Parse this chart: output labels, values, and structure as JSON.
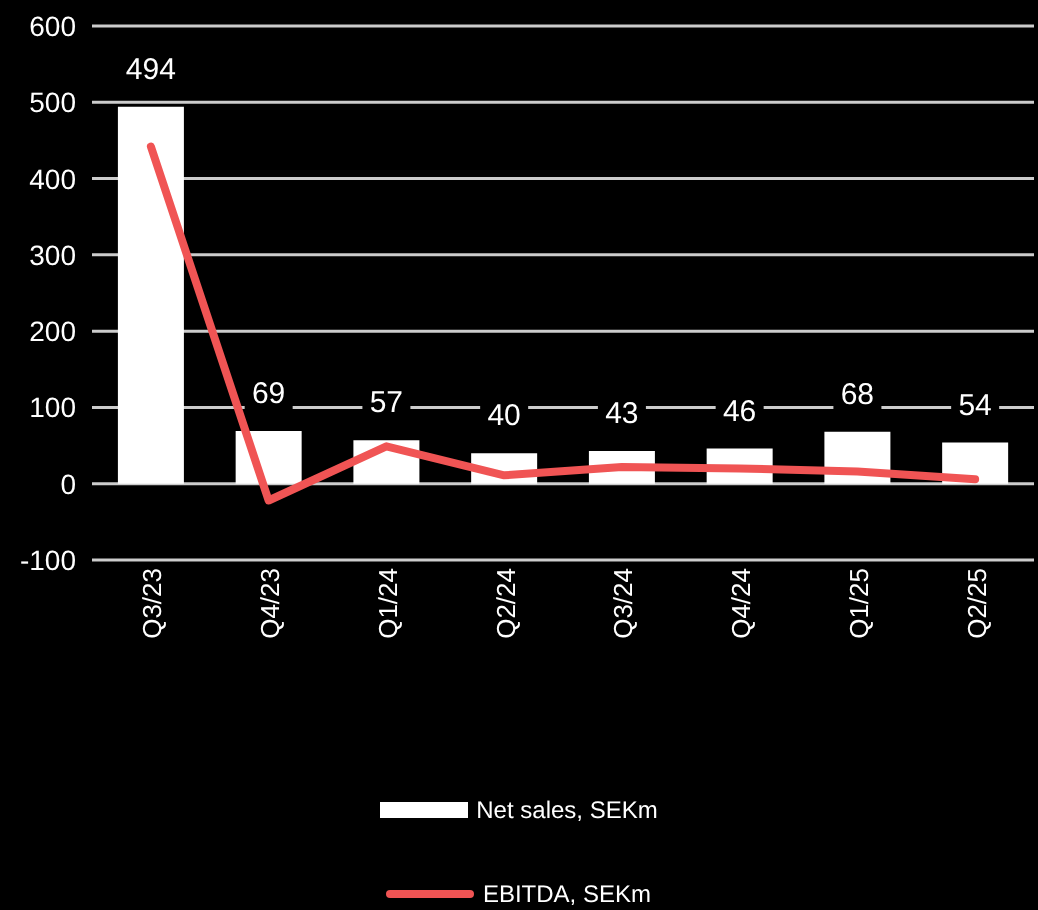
{
  "chart_data": {
    "type": "bar",
    "categories": [
      "Q3/23",
      "Q4/23",
      "Q1/24",
      "Q2/24",
      "Q3/24",
      "Q4/24",
      "Q1/25",
      "Q2/25"
    ],
    "series": [
      {
        "name": "Net sales, SEKm",
        "color": "#ffffff",
        "values": [
          494,
          69,
          57,
          40,
          43,
          46,
          68,
          54
        ],
        "value_labels": [
          "494",
          "69",
          "57",
          "40",
          "43",
          "46",
          "68",
          "54"
        ]
      },
      {
        "name": "EBITDA, SEKm",
        "type": "line",
        "color": "#f05454",
        "values": [
          442,
          -22,
          49,
          11,
          22,
          20,
          16,
          6
        ]
      }
    ],
    "ylim": [
      -100,
      600
    ],
    "yticks": [
      -100,
      0,
      100,
      200,
      300,
      400,
      500,
      600
    ],
    "grid": "y",
    "legend": "bottom",
    "marker": "none"
  }
}
